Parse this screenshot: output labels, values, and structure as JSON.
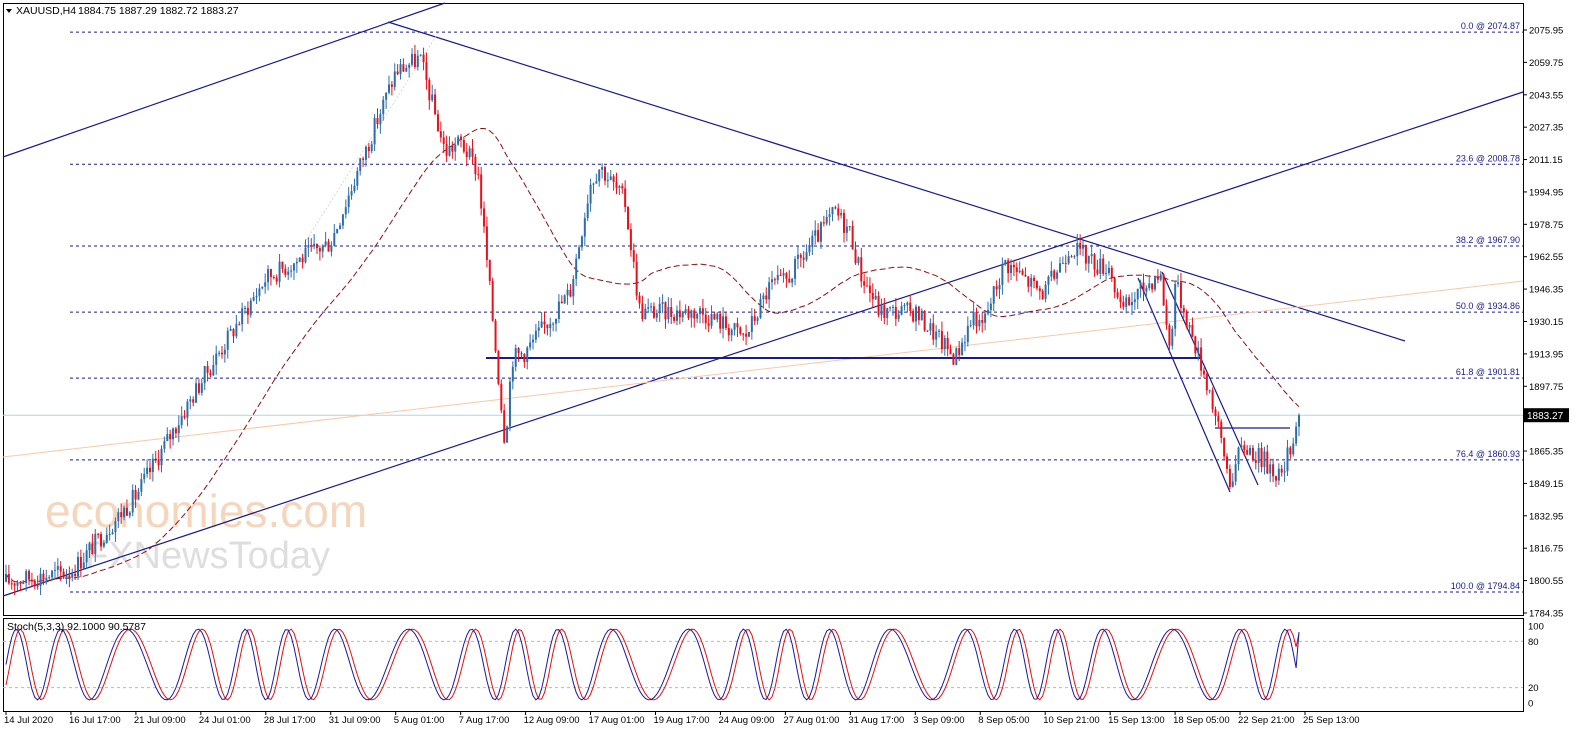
{
  "header": {
    "symbol_label": "XAUUSD,H4",
    "ohlc": "1884.75 1887.29 1882.72 1883.27"
  },
  "stoch": {
    "label": "Stoch(5,3,3) 92.1000 90.5787",
    "levels": [
      "100",
      "80",
      "20",
      "0"
    ]
  },
  "price_axis": {
    "ticks": [
      "2075.95",
      "2059.75",
      "2043.55",
      "2027.35",
      "2011.15",
      "1994.95",
      "1978.75",
      "1962.55",
      "1946.35",
      "1930.15",
      "1913.95",
      "1897.75",
      "1865.35",
      "1849.15",
      "1832.95",
      "1816.75",
      "1800.55",
      "1784.35"
    ]
  },
  "current_price": {
    "value": 1883.27,
    "label": "1883.27"
  },
  "fib_levels": [
    {
      "label": "0.0 @ 2074.87",
      "price": 2074.87
    },
    {
      "label": "23.6 @ 2008.78",
      "price": 2008.78
    },
    {
      "label": "38.2 @ 1967.90",
      "price": 1967.9
    },
    {
      "label": "50.0 @ 1934.86",
      "price": 1934.86
    },
    {
      "label": "61.8 @ 1901.81",
      "price": 1901.81
    },
    {
      "label": "76.4 @ 1860.93",
      "price": 1860.93
    },
    {
      "label": "100.0 @ 1794.84",
      "price": 1794.84
    }
  ],
  "time_axis": [
    "14 Jul 2020",
    "16 Jul 17:00",
    "21 Jul 09:00",
    "24 Jul 01:00",
    "28 Jul 17:00",
    "31 Jul 09:00",
    "5 Aug 01:00",
    "7 Aug 17:00",
    "12 Aug 09:00",
    "17 Aug 01:00",
    "19 Aug 17:00",
    "24 Aug 09:00",
    "27 Aug 01:00",
    "31 Aug 17:00",
    "3 Sep 09:00",
    "8 Sep 05:00",
    "10 Sep 21:00",
    "15 Sep 13:00",
    "18 Sep 05:00",
    "22 Sep 21:00",
    "25 Sep 13:00"
  ],
  "watermark": {
    "line1": "economies.com",
    "line2": "FXNewsToday"
  },
  "colors": {
    "bull": "#2e6ea8",
    "bear": "#e8101a",
    "trend": "#1a1a8c",
    "ma": "#8b1010",
    "fib": "#1a1a8c",
    "price_line": "#a8d8ea",
    "stoch_main": "#1a1aa0",
    "stoch_signal": "#e01010"
  },
  "chart_data": {
    "type": "candlestick",
    "symbol": "XAUUSD",
    "timeframe": "H4",
    "ylim": [
      1784.35,
      2080
    ],
    "key_points": [
      {
        "time": "14 Jul 2020",
        "price": 1800
      },
      {
        "time": "16 Jul 17:00",
        "price": 1805
      },
      {
        "time": "21 Jul 09:00",
        "price": 1843
      },
      {
        "time": "24 Jul 01:00",
        "price": 1900
      },
      {
        "time": "28 Jul 17:00",
        "price": 1952
      },
      {
        "time": "31 Jul 09:00",
        "price": 1970
      },
      {
        "time": "5 Aug 01:00",
        "price": 2055
      },
      {
        "time": "7 Aug 17:00",
        "price": 2020
      },
      {
        "time": "12 Aug 09:00",
        "price": 1915
      },
      {
        "time": "17 Aug 01:00",
        "price": 2000
      },
      {
        "time": "19 Aug 17:00",
        "price": 1935
      },
      {
        "time": "24 Aug 09:00",
        "price": 1930
      },
      {
        "time": "27 Aug 01:00",
        "price": 1950
      },
      {
        "time": "31 Aug 17:00",
        "price": 1975
      },
      {
        "time": "3 Sep 09:00",
        "price": 1935
      },
      {
        "time": "8 Sep 05:00",
        "price": 1925
      },
      {
        "time": "10 Sep 21:00",
        "price": 1945
      },
      {
        "time": "15 Sep 13:00",
        "price": 1958
      },
      {
        "time": "18 Sep 05:00",
        "price": 1950
      },
      {
        "time": "22 Sep 21:00",
        "price": 1865
      },
      {
        "time": "25 Sep 13:00",
        "price": 1860
      }
    ],
    "last_price": 1883.27,
    "stochastic": {
      "params": "5,3,3",
      "main": 92.1,
      "signal": 90.5787
    }
  }
}
